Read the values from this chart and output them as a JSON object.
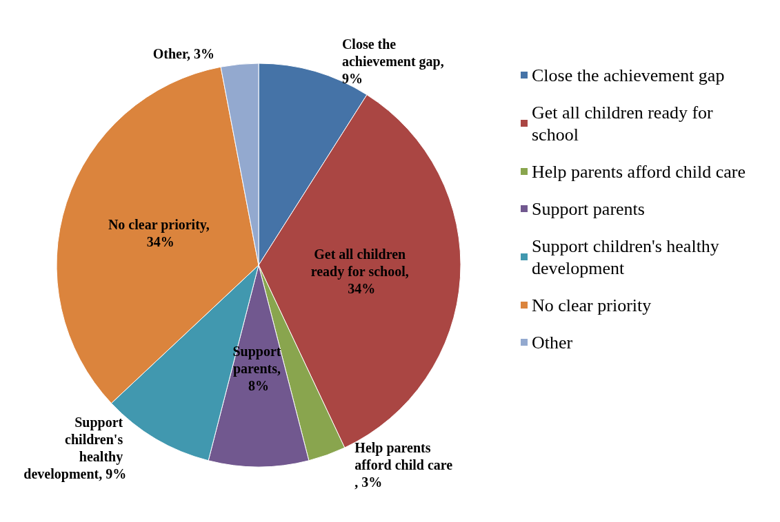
{
  "chart_data": {
    "type": "pie",
    "categories": [
      "Close the achievement gap",
      "Get all children ready for school",
      "Help parents afford child care",
      "Support parents",
      "Support children's healthy development",
      "No clear priority",
      "Other"
    ],
    "values": [
      9,
      34,
      3,
      8,
      9,
      34,
      3
    ],
    "colors": [
      "#4573a7",
      "#aa4643",
      "#89a54e",
      "#71588f",
      "#4198af",
      "#db843d",
      "#93a9cf"
    ],
    "value_labels": [
      "Close the achievement gap, 9%",
      "Get all children ready for school, 34%",
      "Help parents afford child care, 3%",
      "Support parents, 8%",
      "Support children's healthy development, 9%",
      "No clear priority, 34%",
      "Other, 3%"
    ],
    "legend": "right"
  }
}
